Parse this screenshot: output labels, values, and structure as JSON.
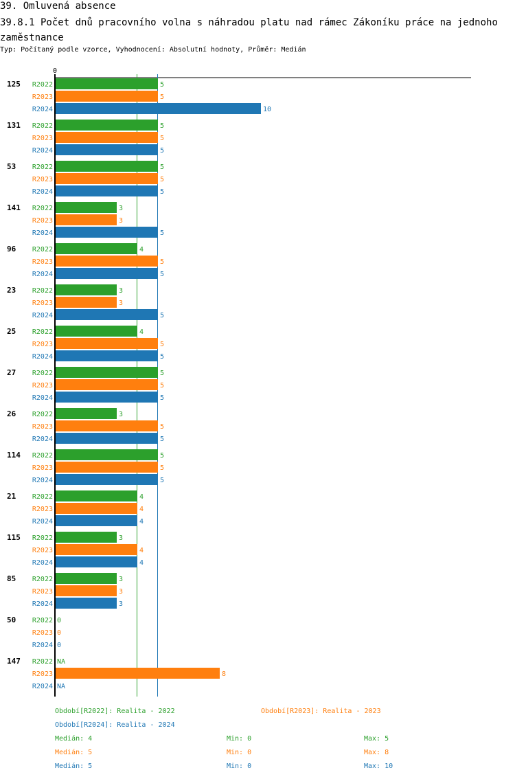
{
  "header": {
    "section": "39. Omluvená absence",
    "title": "39.8.1 Počet dnů pracovního volna s náhradou platu nad rámec Zákoníku práce na jednoho zaměstnance",
    "subtitle": "Typ: Počítaný podle vzorce, Vyhodnocení: Absolutní hodnoty, Průměr: Medián"
  },
  "colors": {
    "R2022": "#2ca02c",
    "R2023": "#ff7f0e",
    "R2024": "#1f77b4",
    "axis": "#000000"
  },
  "chart_data": {
    "type": "bar",
    "orientation": "horizontal",
    "x_axis_tick": "0",
    "xlim": [
      0,
      10
    ],
    "categories": [
      "125",
      "131",
      "53",
      "141",
      "96",
      "23",
      "25",
      "27",
      "26",
      "114",
      "21",
      "115",
      "85",
      "50",
      "147"
    ],
    "series": [
      {
        "name": "R2022",
        "values": [
          5,
          5,
          5,
          3,
          4,
          3,
          4,
          5,
          3,
          5,
          4,
          3,
          3,
          0,
          null
        ]
      },
      {
        "name": "R2023",
        "values": [
          5,
          5,
          5,
          3,
          5,
          3,
          5,
          5,
          5,
          5,
          4,
          4,
          3,
          0,
          8
        ]
      },
      {
        "name": "R2024",
        "values": [
          10,
          5,
          5,
          5,
          5,
          5,
          5,
          5,
          5,
          5,
          4,
          4,
          3,
          0,
          null
        ]
      }
    ],
    "missing_label": "NA",
    "reference_lines": [
      {
        "series": "R2022",
        "value": 4
      },
      {
        "series": "R2023",
        "value": 5
      },
      {
        "series": "R2024",
        "value": 5
      }
    ]
  },
  "legend": {
    "R2022": "Období[R2022]: Realita - 2022",
    "R2023": "Období[R2023]: Realita - 2023",
    "R2024": "Období[R2024]: Realita - 2024"
  },
  "stats": [
    {
      "series": "R2022",
      "median": "Medián: 4",
      "min": "Min: 0",
      "max": "Max: 5"
    },
    {
      "series": "R2023",
      "median": "Medián: 5",
      "min": "Min: 0",
      "max": "Max: 8"
    },
    {
      "series": "R2024",
      "median": "Medián: 5",
      "min": "Min: 0",
      "max": "Max: 10"
    }
  ]
}
